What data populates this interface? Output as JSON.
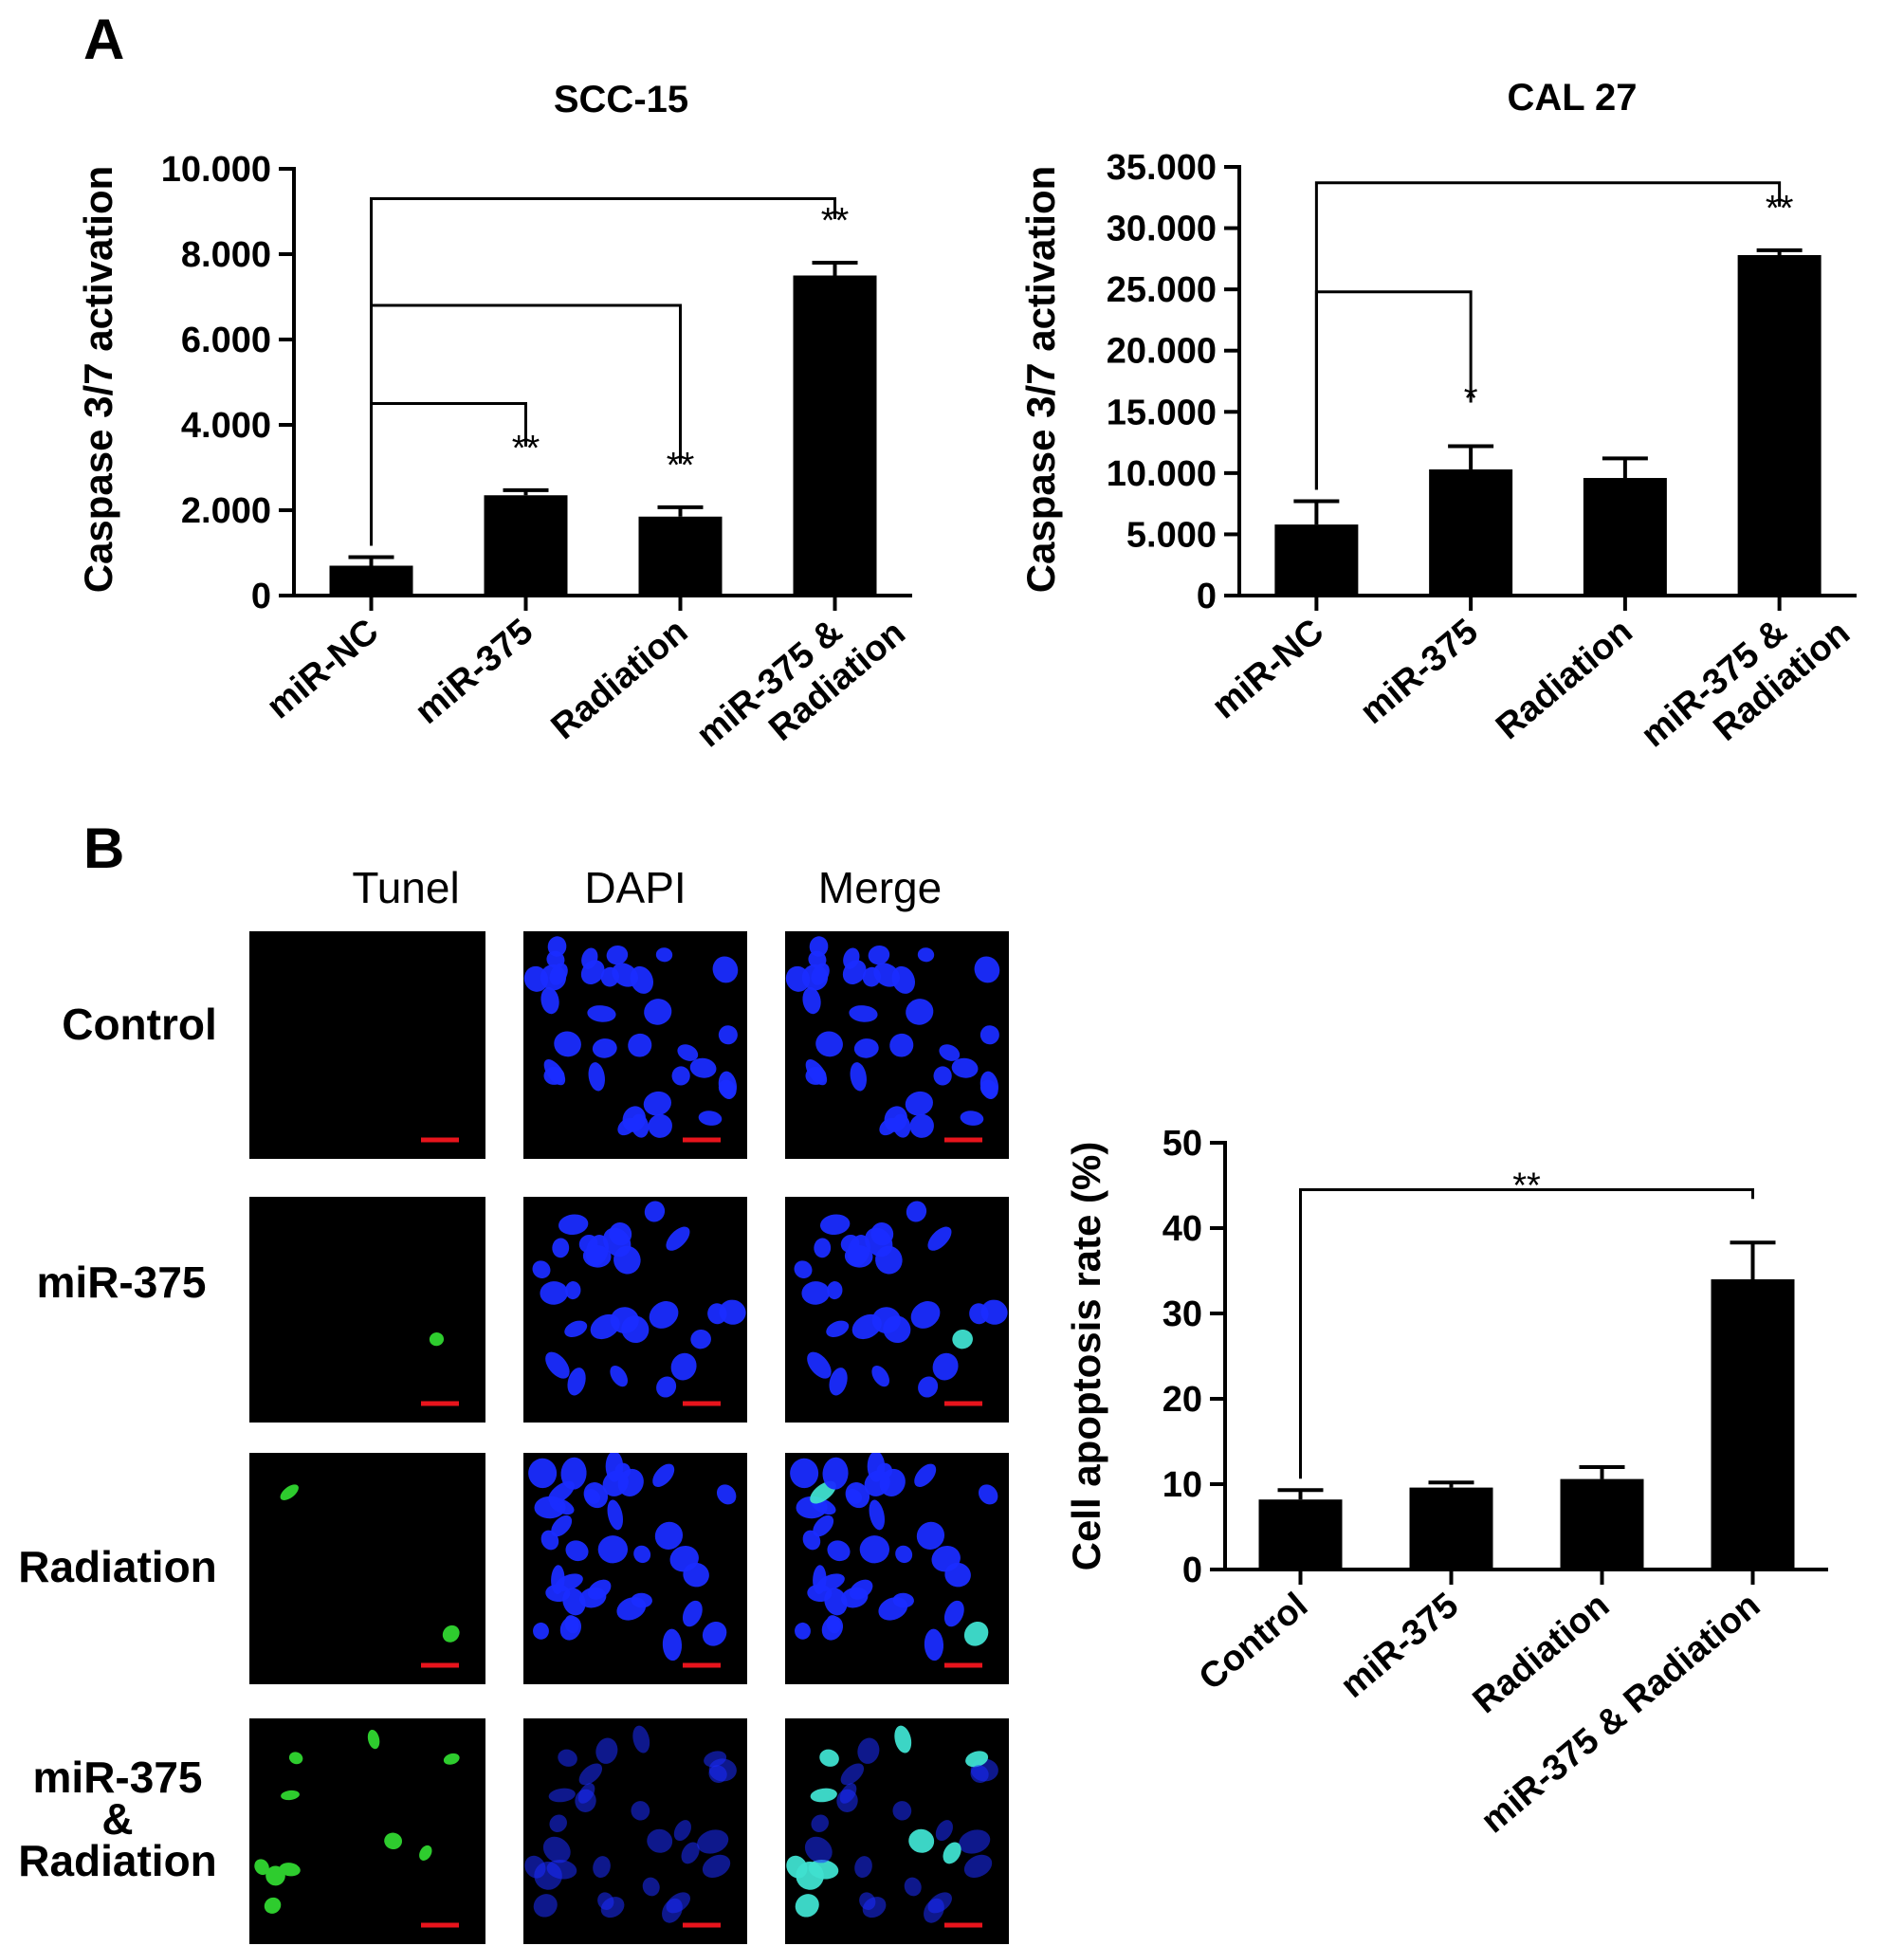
{
  "figure": {
    "panel_a_label": "A",
    "panel_b_label": "B",
    "micro_columns": [
      "Tunel",
      "DAPI",
      "Merge"
    ],
    "micro_rows": [
      "Control",
      "miR-375",
      "Radiation",
      "miR-375 & Radiation"
    ],
    "colors": {
      "bar": "#000000",
      "dapi": "#1a2cff",
      "tunel": "#2ecc2e",
      "scale_bar": "#e8141c",
      "background": "#000000"
    }
  },
  "chart_data": [
    {
      "type": "bar",
      "title": "SCC-15",
      "ylabel": "Caspase 3/7 activation",
      "xlabel": "",
      "categories": [
        "miR-NC",
        "miR-375",
        "Radiation",
        "miR-375 & Radiation"
      ],
      "values": [
        0.7,
        2.35,
        1.85,
        7.5
      ],
      "errors": [
        0.2,
        0.12,
        0.22,
        0.3
      ],
      "ylim": [
        0,
        10
      ],
      "yticks": [
        0,
        2,
        4,
        6,
        8,
        10
      ],
      "ytick_labels": [
        "0",
        "2.000",
        "4.000",
        "6.000",
        "8.000",
        "10.000"
      ],
      "significance": [
        {
          "from": 0,
          "to": 1,
          "label": "**",
          "level": 4.5
        },
        {
          "from": 0,
          "to": 2,
          "label": "**",
          "level": 6.8
        },
        {
          "from": 0,
          "to": 3,
          "label": "**",
          "level": 9.3
        }
      ]
    },
    {
      "type": "bar",
      "title": "CAL 27",
      "ylabel": "Caspase 3/7 activation",
      "xlabel": "",
      "categories": [
        "miR-NC",
        "miR-375",
        "Radiation",
        "miR-375 & Radiation"
      ],
      "values": [
        5.8,
        10.3,
        9.6,
        27.8
      ],
      "errors": [
        1.9,
        1.9,
        1.6,
        0.4
      ],
      "ylim": [
        0,
        35
      ],
      "yticks": [
        0,
        5,
        10,
        15,
        20,
        25,
        30,
        35
      ],
      "ytick_labels": [
        "0",
        "5.000",
        "10.000",
        "15.000",
        "20.000",
        "25.000",
        "30.000",
        "35.000"
      ],
      "significance": [
        {
          "from": 0,
          "to": 1,
          "label": "*",
          "level": 24.8
        },
        {
          "from": 0,
          "to": 3,
          "label": "**",
          "level": 33.7
        }
      ]
    },
    {
      "type": "bar",
      "title": "",
      "ylabel": "Cell apoptosis rate (%)",
      "xlabel": "",
      "categories": [
        "Control",
        "miR-375",
        "Radiation",
        "miR-375 & Radiation"
      ],
      "values": [
        8.2,
        9.6,
        10.6,
        34.0
      ],
      "errors": [
        1.1,
        0.6,
        1.4,
        4.3
      ],
      "ylim": [
        0,
        50
      ],
      "yticks": [
        0,
        10,
        20,
        30,
        40,
        50
      ],
      "ytick_labels": [
        "0",
        "10",
        "20",
        "30",
        "40",
        "50"
      ],
      "significance": [
        {
          "from": 0,
          "to": 3,
          "label": "**",
          "level": 44.5
        }
      ]
    }
  ]
}
